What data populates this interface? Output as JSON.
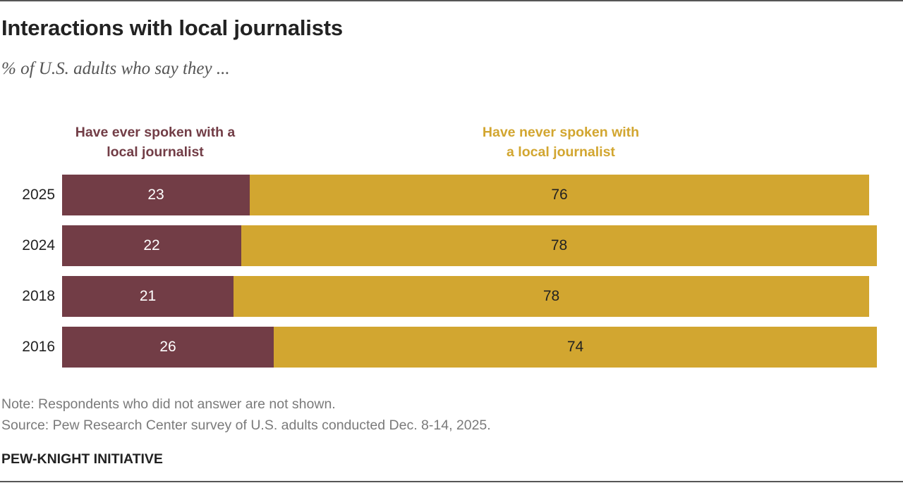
{
  "title": "Interactions with local journalists",
  "subtitle": "% of U.S. adults who say they ...",
  "legend": {
    "ever_line1": "Have ever spoken with a",
    "ever_line2": "local journalist",
    "never_line1": "Have never spoken with",
    "never_line2": "a local journalist"
  },
  "colors": {
    "ever": "#723d46",
    "never": "#d2a630"
  },
  "chart_data": {
    "type": "bar",
    "orientation": "horizontal",
    "stacked": true,
    "title": "Interactions with local journalists",
    "subtitle": "% of U.S. adults who say they ...",
    "categories": [
      "2025",
      "2024",
      "2018",
      "2016"
    ],
    "series": [
      {
        "name": "Have ever spoken with a local journalist",
        "values": [
          23,
          22,
          21,
          26
        ]
      },
      {
        "name": "Have never spoken with a local journalist",
        "values": [
          76,
          78,
          78,
          74
        ]
      }
    ],
    "xlim": [
      0,
      100
    ],
    "xlabel": "",
    "ylabel": "",
    "grid": false,
    "legend_placement": "top"
  },
  "notes": {
    "note": "Note: Respondents who did not answer are not shown.",
    "source": "Source: Pew Research Center survey of U.S. adults conducted Dec. 8-14, 2025."
  },
  "brand": "PEW-KNIGHT INITIATIVE"
}
